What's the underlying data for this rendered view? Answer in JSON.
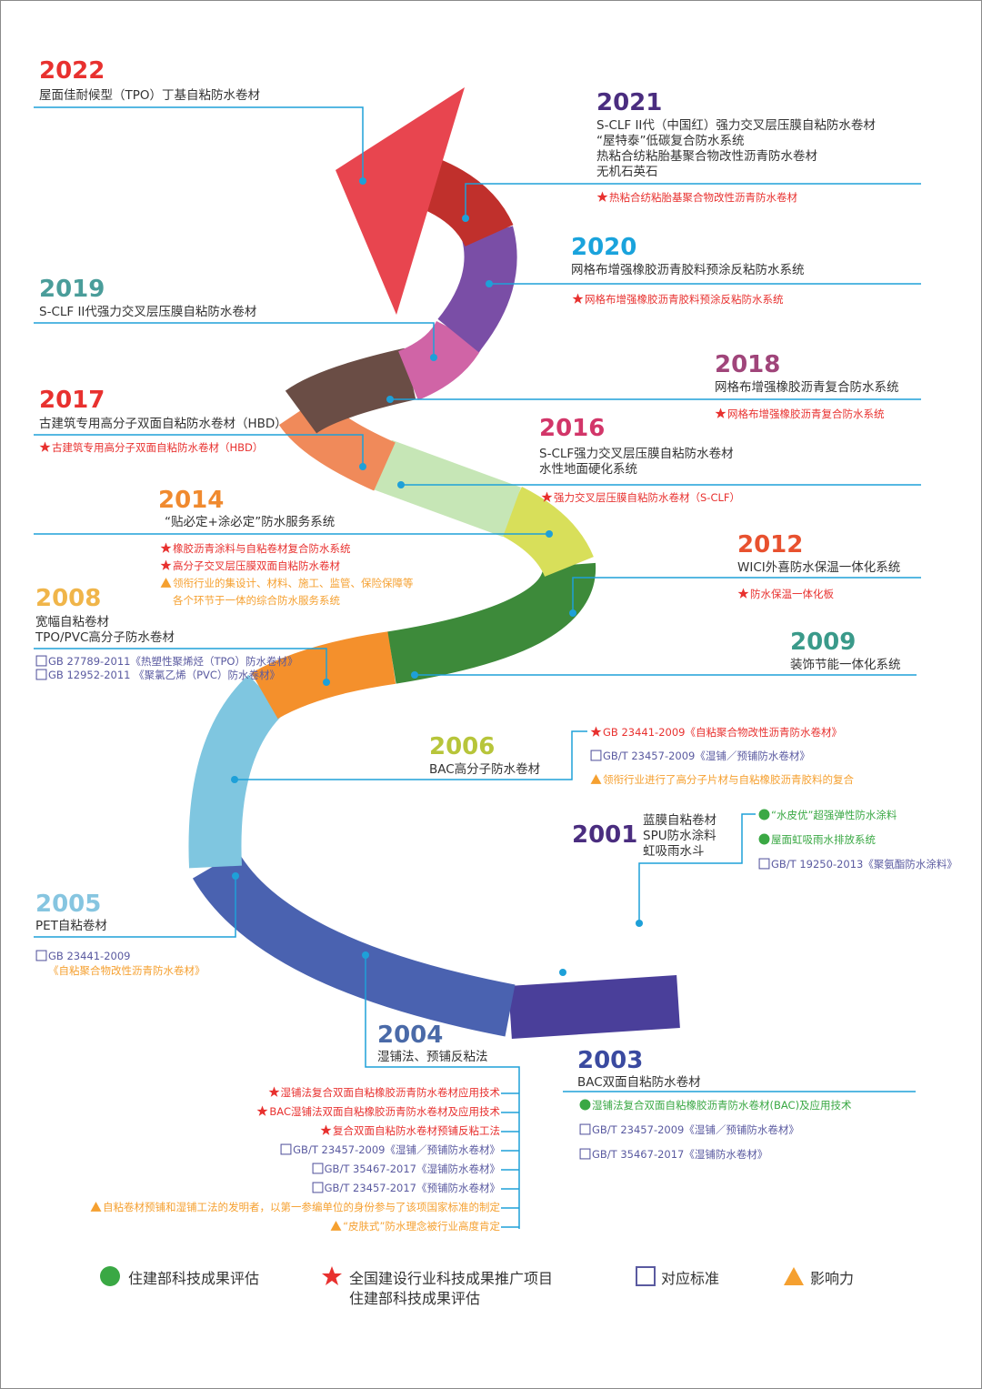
{
  "colors": {
    "line": "#1ea0d8",
    "star": "#e8312f",
    "square": "#5a5aa0",
    "triangle": "#f5a030",
    "circle": "#3aa844"
  },
  "entries": [
    {
      "year": "2022",
      "color": "#e8312f",
      "titles": [
        "屋面佳耐候型（TPO）丁基自粘防水卷材"
      ],
      "notes": []
    },
    {
      "year": "2021",
      "color": "#4a2d7f",
      "titles": [
        "S-CLF II代（中国红）强力交叉层压膜自粘防水卷材",
        "“屋特泰”低碳复合防水系统",
        "热粘合纺粘胎基聚合物改性沥青防水卷材",
        "无机石英石"
      ],
      "notes": [
        {
          "icon": "star",
          "text": "热粘合纺粘胎基聚合物改性沥青防水卷材"
        }
      ]
    },
    {
      "year": "2020",
      "color": "#1aa3dc",
      "titles": [
        "网格布增强橡胶沥青胶料预涂反粘防水系统"
      ],
      "notes": [
        {
          "icon": "star",
          "text": "网格布增强橡胶沥青胶料预涂反粘防水系统"
        }
      ]
    },
    {
      "year": "2019",
      "color": "#4a9d9a",
      "titles": [
        "S-CLF II代强力交叉层压膜自粘防水卷材"
      ],
      "notes": []
    },
    {
      "year": "2018",
      "color": "#a0457a",
      "titles": [
        "网格布增强橡胶沥青复合防水系统"
      ],
      "notes": [
        {
          "icon": "star",
          "text": "网格布增强橡胶沥青复合防水系统"
        }
      ]
    },
    {
      "year": "2017",
      "color": "#e8312f",
      "titles": [
        "古建筑专用高分子双面自粘防水卷材（HBD）"
      ],
      "notes": [
        {
          "icon": "star",
          "text": "古建筑专用高分子双面自粘防水卷材（HBD）"
        }
      ]
    },
    {
      "year": "2016",
      "color": "#d23669",
      "titles": [
        "S-CLF强力交叉层压膜自粘防水卷材",
        "水性地面硬化系统"
      ],
      "notes": [
        {
          "icon": "star",
          "text": "强力交叉层压膜自粘防水卷材（S-CLF）"
        }
      ]
    },
    {
      "year": "2014",
      "color": "#f08a2f",
      "titles": [
        "“贴必定+涂必定”防水服务系统"
      ],
      "notes": [
        {
          "icon": "star",
          "text": "橡胶沥青涂料与自粘卷材复合防水系统"
        },
        {
          "icon": "star",
          "text": "高分子交叉层压膜双面自粘防水卷材"
        },
        {
          "icon": "triangle",
          "text": "领衔行业的集设计、材料、施工、监管、保险保障等"
        },
        {
          "icon": "none",
          "text": "各个环节于一体的综合防水服务系统"
        }
      ]
    },
    {
      "year": "2012",
      "color": "#e8512f",
      "titles": [
        "WICI外喜防水保温一体化系统"
      ],
      "notes": [
        {
          "icon": "star",
          "text": "防水保温一体化板"
        }
      ]
    },
    {
      "year": "2008",
      "color": "#f0b54a",
      "titles": [
        "宽幅自粘卷材",
        "TPO/PVC高分子防水卷材"
      ],
      "notes": [
        {
          "icon": "square",
          "text": "GB 27789-2011《热塑性聚烯烃（TPO）防水卷材》"
        },
        {
          "icon": "square",
          "text": "GB 12952-2011 《聚氯乙烯（PVC）防水卷材》"
        }
      ]
    },
    {
      "year": "2009",
      "color": "#3a9a8a",
      "titles": [
        "装饰节能一体化系统"
      ],
      "notes": []
    },
    {
      "year": "2006",
      "color": "#b7c53a",
      "titles": [
        "BAC高分子防水卷材"
      ],
      "notes": [
        {
          "icon": "star",
          "text": "GB 23441-2009《自粘聚合物改性沥青防水卷材》"
        },
        {
          "icon": "square",
          "text": "GB/T 23457-2009《湿铺／预铺防水卷材》"
        },
        {
          "icon": "triangle",
          "text": "领衔行业进行了高分子片材与自粘橡胶沥青胶料的复合"
        }
      ]
    },
    {
      "year": "2001",
      "color": "#4a2d7f",
      "titles": [
        "蓝膜自粘卷材",
        "SPU防水涂料",
        "虹吸雨水斗"
      ],
      "notes": [
        {
          "icon": "circle",
          "text": "“水皮优”超强弹性防水涂料"
        },
        {
          "icon": "circle",
          "text": "屋面虹吸雨水排放系统"
        },
        {
          "icon": "square",
          "text": "GB/T 19250-2013《聚氨酯防水涂料》"
        }
      ]
    },
    {
      "year": "2005",
      "color": "#86c5e0",
      "titles": [
        "PET自粘卷材"
      ],
      "notes": [
        {
          "icon": "square",
          "text": "GB 23441-2009"
        },
        {
          "icon": "none",
          "text": "《自粘聚合物改性沥青防水卷材》"
        }
      ]
    },
    {
      "year": "2004",
      "color": "#4a6aa8",
      "titles": [
        "湿铺法、预铺反粘法"
      ],
      "notes": [
        {
          "icon": "star",
          "text": "湿铺法复合双面自粘橡胶沥青防水卷材应用技术"
        },
        {
          "icon": "star",
          "text": "BAC湿铺法双面自粘橡胶沥青防水卷材及应用技术"
        },
        {
          "icon": "star",
          "text": "复合双面自粘防水卷材预铺反粘工法"
        },
        {
          "icon": "square",
          "text": "GB/T 23457-2009《湿铺／预铺防水卷材》"
        },
        {
          "icon": "square",
          "text": "GB/T 35467-2017《湿铺防水卷材》"
        },
        {
          "icon": "square",
          "text": "GB/T 23457-2017《预铺防水卷材》"
        },
        {
          "icon": "triangle",
          "text": "自粘卷材预铺和湿铺工法的发明者，以第一参编单位的身份参与了该项国家标准的制定"
        },
        {
          "icon": "triangle",
          "text": "“皮肤式”防水理念被行业高度肯定"
        }
      ]
    },
    {
      "year": "2003",
      "color": "#3a4aa0",
      "titles": [
        "BAC双面自粘防水卷材"
      ],
      "notes": [
        {
          "icon": "circle",
          "text": "湿铺法复合双面自粘橡胶沥青防水卷材(BAC)及应用技术"
        },
        {
          "icon": "square",
          "text": "GB/T 23457-2009《湿铺／预铺防水卷材》"
        },
        {
          "icon": "square",
          "text": "GB/T 35467-2017《湿铺防水卷材》"
        }
      ]
    }
  ],
  "legend": [
    {
      "icon": "circle",
      "lines": [
        "住建部科技成果评估"
      ]
    },
    {
      "icon": "star",
      "lines": [
        "全国建设行业科技成果推广项目",
        "住建部科技成果评估"
      ]
    },
    {
      "icon": "square",
      "lines": [
        "对应标准"
      ]
    },
    {
      "icon": "triangle",
      "lines": [
        "影响力"
      ]
    }
  ]
}
